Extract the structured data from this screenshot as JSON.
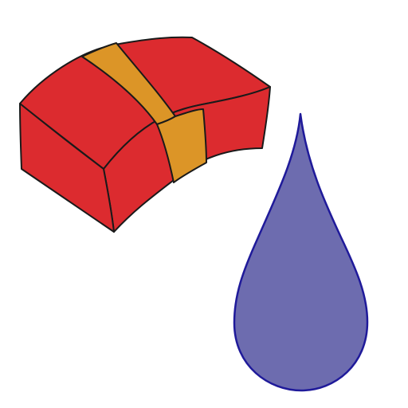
{
  "scene": {
    "background_color": "#ffffff",
    "objects": [
      {
        "icon": "gift-box-icon",
        "description_color": "#dc2b2f",
        "band_color": "#dc9527"
      },
      {
        "icon": "water-drop-icon",
        "fill_color": "#6d6caf",
        "stroke_color": "#1f1a9a"
      }
    ]
  }
}
